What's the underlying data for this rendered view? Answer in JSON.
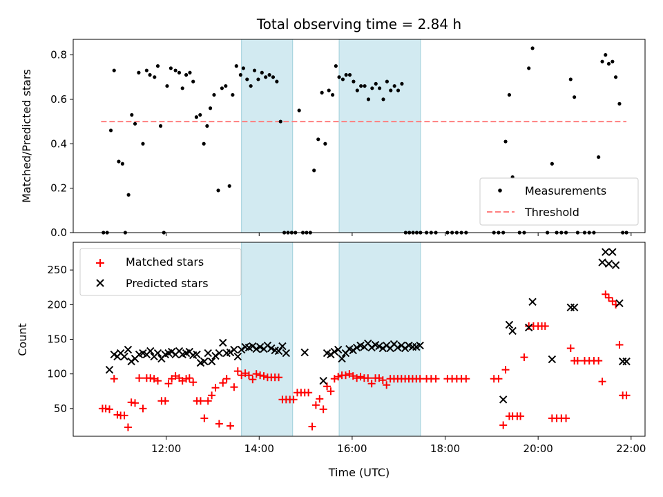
{
  "colors": {
    "measurement": "#000000",
    "threshold": "#ff7f7f",
    "matched": "#ff0000",
    "predicted": "#000000",
    "shade": "#add8e6"
  },
  "chart_data": {
    "type": "scatter",
    "title": "Total observing time = 2.84 h",
    "xlabel": "Time (UTC)",
    "xlim": [
      10.0,
      22.3
    ],
    "x_ticks": [
      12,
      14,
      16,
      18,
      20,
      22
    ],
    "x_tick_labels": [
      "12:00",
      "14:00",
      "16:00",
      "18:00",
      "20:00",
      "22:00"
    ],
    "shaded_intervals": [
      [
        13.62,
        14.72
      ],
      [
        15.72,
        17.47
      ]
    ],
    "panels": [
      {
        "ylabel": "Matched/Predicted stars",
        "ylim": [
          0.0,
          0.87
        ],
        "y_ticks": [
          0.0,
          0.2,
          0.4,
          0.6,
          0.8
        ],
        "y_tick_labels": [
          "0.0",
          "0.2",
          "0.4",
          "0.6",
          "0.8"
        ],
        "legend": {
          "position": "lower right",
          "entries": [
            "Measurements",
            "Threshold"
          ]
        },
        "threshold": {
          "name": "Threshold",
          "y": 0.5,
          "x_range": [
            10.6,
            21.9
          ]
        },
        "series": [
          {
            "name": "Measurements",
            "marker": "dot",
            "x": [
              10.65,
              10.73,
              10.81,
              10.88,
              10.98,
              11.06,
              11.12,
              11.19,
              11.26,
              11.33,
              11.41,
              11.5,
              11.58,
              11.65,
              11.75,
              11.82,
              11.88,
              11.95,
              12.02,
              12.1,
              12.2,
              12.28,
              12.35,
              12.43,
              12.51,
              12.58,
              12.65,
              12.73,
              12.81,
              12.88,
              12.95,
              13.03,
              13.12,
              13.2,
              13.28,
              13.36,
              13.43,
              13.51,
              13.6,
              13.66,
              13.74,
              13.82,
              13.9,
              13.98,
              14.06,
              14.14,
              14.22,
              14.3,
              14.38,
              14.46,
              14.54,
              14.62,
              14.7,
              14.78,
              14.86,
              14.94,
              15.02,
              15.1,
              15.18,
              15.27,
              15.35,
              15.42,
              15.5,
              15.58,
              15.65,
              15.72,
              15.8,
              15.87,
              15.95,
              16.03,
              16.11,
              16.19,
              16.27,
              16.35,
              16.43,
              16.51,
              16.59,
              16.67,
              16.75,
              16.83,
              16.91,
              16.99,
              17.07,
              17.15,
              17.23,
              17.31,
              17.39,
              17.47,
              17.6,
              17.7,
              17.8,
              18.05,
              18.15,
              18.25,
              18.35,
              18.45,
              19.05,
              19.15,
              19.25,
              19.3,
              19.38,
              19.45,
              19.6,
              19.7,
              19.8,
              19.88,
              20.2,
              20.3,
              20.4,
              20.5,
              20.6,
              20.7,
              20.78,
              20.85,
              21.0,
              21.1,
              21.2,
              21.3,
              21.38,
              21.45,
              21.52,
              21.6,
              21.67,
              21.75,
              21.82,
              21.9
            ],
            "y": [
              0.0,
              0.0,
              0.46,
              0.73,
              0.32,
              0.31,
              0.0,
              0.17,
              0.53,
              0.49,
              0.72,
              0.4,
              0.73,
              0.71,
              0.7,
              0.75,
              0.48,
              0.0,
              0.66,
              0.74,
              0.73,
              0.72,
              0.65,
              0.71,
              0.72,
              0.68,
              0.52,
              0.53,
              0.4,
              0.48,
              0.56,
              0.62,
              0.19,
              0.65,
              0.66,
              0.21,
              0.62,
              0.75,
              0.71,
              0.74,
              0.69,
              0.66,
              0.73,
              0.69,
              0.72,
              0.7,
              0.71,
              0.7,
              0.68,
              0.5,
              0.0,
              0.0,
              0.0,
              0.0,
              0.55,
              0.0,
              0.0,
              0.0,
              0.28,
              0.42,
              0.63,
              0.4,
              0.64,
              0.62,
              0.75,
              0.7,
              0.69,
              0.71,
              0.71,
              0.68,
              0.64,
              0.66,
              0.66,
              0.6,
              0.65,
              0.67,
              0.65,
              0.6,
              0.68,
              0.64,
              0.66,
              0.64,
              0.67,
              0.0,
              0.0,
              0.0,
              0.0,
              0.0,
              0.0,
              0.0,
              0.0,
              0.0,
              0.0,
              0.0,
              0.0,
              0.0,
              0.0,
              0.0,
              0.0,
              0.41,
              0.62,
              0.25,
              0.0,
              0.0,
              0.74,
              0.83,
              0.0,
              0.31,
              0.0,
              0.0,
              0.0,
              0.69,
              0.61,
              0.0,
              0.0,
              0.0,
              0.0,
              0.34,
              0.77,
              0.8,
              0.76,
              0.77,
              0.7,
              0.58,
              0.0,
              0.0
            ]
          }
        ]
      },
      {
        "ylabel": "Count",
        "ylim": [
          10,
          290
        ],
        "y_ticks": [
          50,
          100,
          150,
          200,
          250
        ],
        "y_tick_labels": [
          "50",
          "100",
          "150",
          "200",
          "250"
        ],
        "legend": {
          "position": "upper left",
          "entries": [
            "Matched stars",
            "Predicted stars"
          ]
        },
        "series": [
          {
            "name": "Matched stars",
            "marker": "plus",
            "x": [
              10.63,
              10.7,
              10.78,
              10.88,
              10.95,
              11.02,
              11.1,
              11.18,
              11.25,
              11.33,
              11.42,
              11.5,
              11.58,
              11.66,
              11.74,
              11.82,
              11.9,
              11.98,
              12.05,
              12.12,
              12.2,
              12.28,
              12.35,
              12.43,
              12.5,
              12.58,
              12.66,
              12.74,
              12.82,
              12.9,
              12.98,
              13.06,
              13.14,
              13.22,
              13.3,
              13.38,
              13.46,
              13.54,
              13.62,
              13.7,
              13.78,
              13.86,
              13.94,
              14.02,
              14.1,
              14.18,
              14.26,
              14.34,
              14.42,
              14.5,
              14.58,
              14.66,
              14.74,
              14.82,
              14.9,
              14.98,
              15.06,
              15.14,
              15.22,
              15.3,
              15.38,
              15.46,
              15.54,
              15.62,
              15.7,
              15.78,
              15.86,
              15.94,
              16.02,
              16.1,
              16.18,
              16.26,
              16.34,
              16.42,
              16.5,
              16.58,
              16.66,
              16.74,
              16.82,
              16.9,
              16.98,
              17.06,
              17.14,
              17.22,
              17.3,
              17.38,
              17.46,
              17.6,
              17.7,
              17.8,
              18.05,
              18.15,
              18.25,
              18.35,
              18.45,
              19.05,
              19.15,
              19.25,
              19.3,
              19.38,
              19.45,
              19.55,
              19.62,
              19.7,
              19.8,
              19.9,
              20.0,
              20.08,
              20.15,
              20.3,
              20.4,
              20.5,
              20.6,
              20.7,
              20.78,
              20.85,
              21.0,
              21.1,
              21.2,
              21.3,
              21.38,
              21.45,
              21.52,
              21.6,
              21.67,
              21.75,
              21.82,
              21.9
            ],
            "y": [
              50,
              50,
              49,
              93,
              41,
              40,
              40,
              23,
              59,
              58,
              94,
              50,
              94,
              94,
              93,
              90,
              61,
              61,
              86,
              93,
              97,
              94,
              90,
              93,
              94,
              88,
              61,
              61,
              36,
              61,
              69,
              80,
              28,
              87,
              93,
              25,
              81,
              104,
              98,
              101,
              98,
              92,
              100,
              98,
              97,
              95,
              95,
              95,
              95,
              63,
              63,
              63,
              63,
              73,
              73,
              73,
              73,
              24,
              55,
              64,
              49,
              82,
              75,
              93,
              96,
              98,
              98,
              100,
              97,
              94,
              96,
              94,
              94,
              86,
              94,
              94,
              91,
              84,
              93,
              93,
              93,
              93,
              93,
              93,
              93,
              93,
              93,
              93,
              93,
              93,
              93,
              93,
              93,
              93,
              93,
              93,
              93,
              26,
              106,
              39,
              39,
              39,
              39,
              124,
              169,
              169,
              169,
              169,
              169,
              36,
              36,
              36,
              36,
              137,
              119,
              119,
              119,
              119,
              119,
              119,
              89,
              215,
              210,
              205,
              200,
              142,
              69,
              69
            ]
          },
          {
            "name": "Predicted stars",
            "marker": "x",
            "x": [
              10.78,
              10.88,
              10.95,
              11.02,
              11.1,
              11.18,
              11.25,
              11.33,
              11.42,
              11.5,
              11.58,
              11.66,
              11.74,
              11.82,
              11.9,
              11.98,
              12.05,
              12.12,
              12.2,
              12.28,
              12.35,
              12.43,
              12.5,
              12.58,
              12.66,
              12.74,
              12.82,
              12.9,
              12.98,
              13.06,
              13.14,
              13.22,
              13.3,
              13.38,
              13.46,
              13.54,
              13.62,
              13.7,
              13.78,
              13.86,
              13.94,
              14.02,
              14.1,
              14.18,
              14.26,
              14.34,
              14.42,
              14.5,
              14.58,
              14.98,
              15.38,
              15.46,
              15.54,
              15.62,
              15.7,
              15.78,
              15.86,
              15.94,
              16.02,
              16.1,
              16.18,
              16.26,
              16.34,
              16.42,
              16.5,
              16.58,
              16.66,
              16.74,
              16.82,
              16.9,
              16.98,
              17.06,
              17.14,
              17.22,
              17.3,
              17.38,
              17.46,
              19.25,
              19.38,
              19.45,
              19.8,
              19.88,
              20.3,
              20.7,
              20.78,
              21.38,
              21.45,
              21.52,
              21.6,
              21.67,
              21.75,
              21.82,
              21.9
            ],
            "y": [
              106,
              128,
              125,
              130,
              125,
              135,
              118,
              122,
              128,
              130,
              128,
              133,
              125,
              130,
              122,
              128,
              130,
              132,
              128,
              133,
              128,
              130,
              132,
              127,
              128,
              116,
              118,
              130,
              118,
              126,
              130,
              145,
              130,
              131,
              135,
              125,
              135,
              139,
              138,
              140,
              136,
              139,
              136,
              141,
              137,
              134,
              133,
              140,
              130,
              131,
              90,
              130,
              128,
              132,
              135,
              122,
              130,
              136,
              134,
              138,
              141,
              139,
              144,
              138,
              142,
              140,
              137,
              141,
              137,
              143,
              138,
              141,
              137,
              141,
              139,
              139,
              141,
              63,
              171,
              162,
              167,
              204,
              121,
              196,
              196,
              261,
              276,
              259,
              276,
              257,
              202,
              118,
              118
            ]
          }
        ]
      }
    ]
  }
}
